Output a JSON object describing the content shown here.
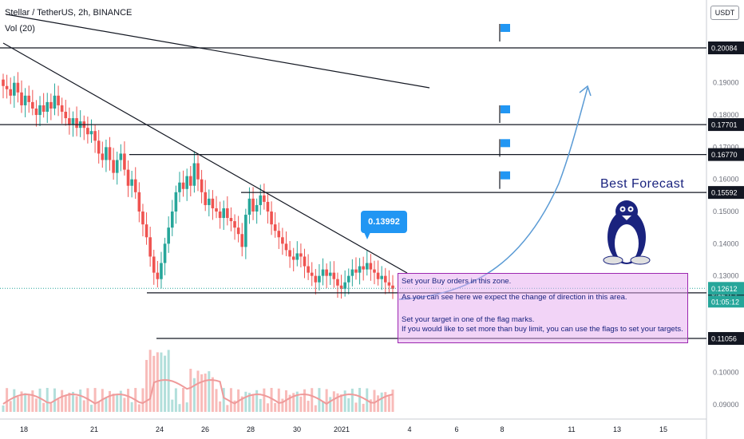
{
  "header": {
    "symbol_line": "Stellar / TetherUS, 2h, BINANCE",
    "volume_line": "Vol (20)"
  },
  "currency_button": "USDT",
  "callout_label": "0.13992",
  "best_forecast_label": "Best  Forecast",
  "note": {
    "line1": "Set your Buy orders in this zone.",
    "line2": "As you can see here we expect the change of direction in this area.",
    "line3": "Set your target in one of the flag marks.",
    "line4": "If you would like to set more than buy limit, you can use the flags to set your targets."
  },
  "colors": {
    "up": "#26a69a",
    "down": "#ef5350",
    "level_label": "#131722",
    "note_border": "#9c27b0",
    "arrow": "#5b9bd5",
    "flag": "#2196f3",
    "volume_ma": "#ef9a9a"
  },
  "chart_data": {
    "type": "candlestick",
    "ylim": [
      0.088,
      0.212
    ],
    "y_ticks": [
      "0.19000",
      "0.18000",
      "0.17000",
      "0.16000",
      "0.15000",
      "0.14000",
      "0.13000",
      "0.10000",
      "0.09000"
    ],
    "x_ticks": [
      "18",
      "21",
      "24",
      "26",
      "28",
      "30",
      "2021",
      "4",
      "6",
      "8",
      "11",
      "13",
      "15"
    ],
    "levels": [
      {
        "value": "0.20084"
      },
      {
        "value": "0.17701"
      },
      {
        "value": "0.16770"
      },
      {
        "value": "0.15592"
      },
      {
        "value": "0.12474"
      },
      {
        "value": "0.11056"
      }
    ],
    "current_price": "0.12612",
    "countdown": "01:05:12",
    "close_series": [
      0.189,
      0.188,
      0.186,
      0.19,
      0.187,
      0.183,
      0.186,
      0.184,
      0.182,
      0.18,
      0.183,
      0.181,
      0.184,
      0.182,
      0.186,
      0.183,
      0.181,
      0.179,
      0.177,
      0.179,
      0.176,
      0.178,
      0.176,
      0.174,
      0.175,
      0.172,
      0.168,
      0.166,
      0.17,
      0.166,
      0.162,
      0.166,
      0.168,
      0.163,
      0.158,
      0.16,
      0.156,
      0.15,
      0.146,
      0.142,
      0.136,
      0.131,
      0.129,
      0.134,
      0.14,
      0.145,
      0.15,
      0.156,
      0.159,
      0.157,
      0.161,
      0.158,
      0.165,
      0.16,
      0.156,
      0.152,
      0.154,
      0.151,
      0.15,
      0.148,
      0.151,
      0.148,
      0.147,
      0.145,
      0.143,
      0.139,
      0.149,
      0.154,
      0.15,
      0.152,
      0.155,
      0.153,
      0.15,
      0.146,
      0.144,
      0.142,
      0.14,
      0.138,
      0.136,
      0.135,
      0.137,
      0.136,
      0.133,
      0.131,
      0.13,
      0.128,
      0.13,
      0.132,
      0.13,
      0.131,
      0.129,
      0.127,
      0.126,
      0.128,
      0.13,
      0.132,
      0.131,
      0.133,
      0.132,
      0.134,
      0.132,
      0.131,
      0.129,
      0.13,
      0.128,
      0.127,
      0.126
    ]
  }
}
